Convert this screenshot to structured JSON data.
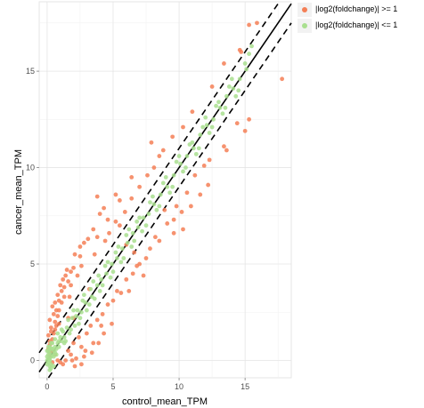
{
  "chart_data": {
    "type": "scatter",
    "xlabel": "control_mean_TPM",
    "ylabel": "cancer_mean_TPM",
    "xlim": [
      -0.6,
      18.5
    ],
    "ylim": [
      -0.9,
      18.6
    ],
    "x_ticks": [
      0,
      5,
      10,
      15
    ],
    "y_ticks": [
      0,
      5,
      10,
      15
    ],
    "grid": true,
    "legend_position": "top-right",
    "reference_lines": [
      {
        "slope": 1,
        "intercept": 0,
        "style": "solid"
      },
      {
        "slope": 1,
        "intercept": 1,
        "style": "dashed"
      },
      {
        "slope": 1,
        "intercept": -1,
        "style": "dashed"
      }
    ],
    "series": [
      {
        "name": "|log2(foldchange)| >= 1",
        "color": "#f47f56",
        "points": [
          [
            0.2,
            2.1
          ],
          [
            0.4,
            2.8
          ],
          [
            0.6,
            3.0
          ],
          [
            0.3,
            1.7
          ],
          [
            0.5,
            2.4
          ],
          [
            0.8,
            3.4
          ],
          [
            1.0,
            3.9
          ],
          [
            1.2,
            4.2
          ],
          [
            0.7,
            2.6
          ],
          [
            0.9,
            3.1
          ],
          [
            1.1,
            3.6
          ],
          [
            1.4,
            4.4
          ],
          [
            1.5,
            4.7
          ],
          [
            1.8,
            4.6
          ],
          [
            2.1,
            5.5
          ],
          [
            2.5,
            5.9
          ],
          [
            3.1,
            6.3
          ],
          [
            3.5,
            6.8
          ],
          [
            4.0,
            7.6
          ],
          [
            4.3,
            7.9
          ],
          [
            5.2,
            8.6
          ],
          [
            5.5,
            8.3
          ],
          [
            6.4,
            9.5
          ],
          [
            4.6,
            7.3
          ],
          [
            3.8,
            6.4
          ],
          [
            2.8,
            6.1
          ],
          [
            0.6,
            2.0
          ],
          [
            0.8,
            2.3
          ],
          [
            0.3,
            1.5
          ],
          [
            0.1,
            1.3
          ],
          [
            1.3,
            3.8
          ],
          [
            2.0,
            4.8
          ],
          [
            0.2,
            0.8
          ],
          [
            0.4,
            1.1
          ],
          [
            0.6,
            1.6
          ],
          [
            0.9,
            1.9
          ],
          [
            1.7,
            3.3
          ],
          [
            2.3,
            4.4
          ],
          [
            2.6,
            4.9
          ],
          [
            1.6,
            4.1
          ],
          [
            0.5,
            1.4
          ],
          [
            0.7,
            1.8
          ],
          [
            0.1,
            0.6
          ],
          [
            0.2,
            0.4
          ],
          [
            0.3,
            0.9
          ],
          [
            0.4,
            0.5
          ],
          [
            0.2,
            1.0
          ],
          [
            3.8,
            8.5
          ],
          [
            1.6,
            0.5
          ],
          [
            2.0,
            0.9
          ],
          [
            2.4,
            1.2
          ],
          [
            1.8,
            0.3
          ],
          [
            2.6,
            0.7
          ],
          [
            3.0,
            1.4
          ],
          [
            3.3,
            1.8
          ],
          [
            2.9,
            0.5
          ],
          [
            3.8,
            2.1
          ],
          [
            4.2,
            2.4
          ],
          [
            4.6,
            2.9
          ],
          [
            5.0,
            3.1
          ],
          [
            3.5,
            0.9
          ],
          [
            2.2,
            0.1
          ],
          [
            1.9,
            0.0
          ],
          [
            2.8,
            0.2
          ],
          [
            5.3,
            3.6
          ],
          [
            6.0,
            4.2
          ],
          [
            6.5,
            4.5
          ],
          [
            7.0,
            5.0
          ],
          [
            7.8,
            5.8
          ],
          [
            8.5,
            6.2
          ],
          [
            9.1,
            7.1
          ],
          [
            9.6,
            7.3
          ],
          [
            10.3,
            6.8
          ],
          [
            10.9,
            8.0
          ],
          [
            11.6,
            8.6
          ],
          [
            12.2,
            9.1
          ],
          [
            13.6,
            10.9
          ],
          [
            14.4,
            12.3
          ],
          [
            15.0,
            11.9
          ],
          [
            15.3,
            12.5
          ],
          [
            17.8,
            14.6
          ],
          [
            15.3,
            17.4
          ],
          [
            14.6,
            16.1
          ],
          [
            13.4,
            15.4
          ],
          [
            12.5,
            14.2
          ],
          [
            11.0,
            12.9
          ],
          [
            10.3,
            12.1
          ],
          [
            9.5,
            11.6
          ],
          [
            8.8,
            10.9
          ],
          [
            8.1,
            10.0
          ],
          [
            7.6,
            9.6
          ],
          [
            7.0,
            9.0
          ],
          [
            6.4,
            8.4
          ],
          [
            5.9,
            7.7
          ],
          [
            7.9,
            11.3
          ],
          [
            8.5,
            10.6
          ],
          [
            9.6,
            6.6
          ],
          [
            10.2,
            7.7
          ],
          [
            5.6,
            3.5
          ],
          [
            6.8,
            4.9
          ],
          [
            4.9,
            1.9
          ],
          [
            4.3,
            1.4
          ],
          [
            1.4,
            0.0
          ],
          [
            1.2,
            -0.2
          ],
          [
            1.0,
            -0.1
          ],
          [
            2.0,
            2.2
          ],
          [
            3.2,
            3.7
          ],
          [
            1.6,
            2.2
          ],
          [
            13.4,
            11.1
          ],
          [
            14.7,
            16.0
          ],
          [
            12.3,
            10.4
          ],
          [
            15.9,
            17.5
          ],
          [
            0.2,
            0.2
          ],
          [
            0.4,
            -0.1
          ],
          [
            0.6,
            0.3
          ],
          [
            0.8,
            0.0
          ],
          [
            1.8,
            3.9
          ],
          [
            2.5,
            5.4
          ],
          [
            0.9,
            2.6
          ],
          [
            1.1,
            3.0
          ],
          [
            1.3,
            3.3
          ],
          [
            3.6,
            5.5
          ],
          [
            4.4,
            6.2
          ],
          [
            4.7,
            6.6
          ],
          [
            5.2,
            7.2
          ],
          [
            5.5,
            7.0
          ],
          [
            6.0,
            6.0
          ],
          [
            6.6,
            5.6
          ],
          [
            8.2,
            6.4
          ],
          [
            8.9,
            7.8
          ],
          [
            9.8,
            8.0
          ],
          [
            10.6,
            8.7
          ],
          [
            11.2,
            9.6
          ],
          [
            11.9,
            10.1
          ],
          [
            2.1,
            -0.3
          ],
          [
            2.6,
            -0.2
          ],
          [
            3.4,
            0.4
          ],
          [
            3.9,
            0.9
          ],
          [
            4.1,
            1.8
          ],
          [
            6.2,
            3.6
          ],
          [
            7.3,
            4.4
          ],
          [
            7.5,
            5.3
          ]
        ]
      },
      {
        "name": "|log2(foldchange)| <= 1",
        "color": "#a9df8f",
        "points": [
          [
            0.0,
            0.0
          ],
          [
            0.1,
            0.1
          ],
          [
            0.2,
            0.1
          ],
          [
            0.3,
            0.2
          ],
          [
            0.1,
            0.3
          ],
          [
            0.2,
            0.4
          ],
          [
            0.3,
            0.6
          ],
          [
            0.4,
            0.3
          ],
          [
            0.5,
            0.5
          ],
          [
            0.6,
            0.7
          ],
          [
            0.7,
            0.6
          ],
          [
            0.8,
            0.9
          ],
          [
            0.9,
            1.0
          ],
          [
            1.0,
            1.2
          ],
          [
            1.1,
            1.0
          ],
          [
            1.2,
            1.5
          ],
          [
            1.3,
            1.2
          ],
          [
            1.5,
            1.7
          ],
          [
            1.7,
            1.4
          ],
          [
            1.9,
            2.2
          ],
          [
            2.1,
            1.8
          ],
          [
            2.3,
            2.6
          ],
          [
            2.5,
            2.2
          ],
          [
            2.7,
            3.1
          ],
          [
            3.0,
            2.6
          ],
          [
            3.3,
            3.7
          ],
          [
            3.6,
            3.2
          ],
          [
            3.9,
            4.4
          ],
          [
            4.2,
            3.9
          ],
          [
            4.6,
            5.1
          ],
          [
            5.0,
            4.6
          ],
          [
            5.4,
            5.9
          ],
          [
            5.8,
            5.3
          ],
          [
            6.2,
            6.8
          ],
          [
            6.6,
            6.2
          ],
          [
            7.0,
            7.4
          ],
          [
            7.5,
            7.0
          ],
          [
            8.0,
            8.5
          ],
          [
            8.5,
            8.0
          ],
          [
            9.0,
            9.5
          ],
          [
            9.5,
            9.0
          ],
          [
            10.0,
            10.6
          ],
          [
            10.5,
            10.0
          ],
          [
            11.0,
            11.3
          ],
          [
            11.5,
            11.0
          ],
          [
            12.0,
            12.6
          ],
          [
            12.5,
            12.1
          ],
          [
            13.0,
            13.4
          ],
          [
            13.5,
            13.1
          ],
          [
            14.0,
            14.6
          ],
          [
            14.5,
            14.0
          ],
          [
            15.0,
            15.4
          ],
          [
            15.3,
            15.9
          ],
          [
            15.5,
            16.3
          ],
          [
            0.1,
            -0.1
          ],
          [
            0.2,
            -0.3
          ],
          [
            0.3,
            -0.2
          ],
          [
            0.0,
            0.5
          ],
          [
            0.1,
            0.7
          ],
          [
            0.4,
            0.9
          ],
          [
            0.6,
            1.1
          ],
          [
            0.5,
            0.2
          ],
          [
            0.2,
            0.0
          ],
          [
            0.4,
            0.6
          ],
          [
            0.7,
            0.3
          ],
          [
            0.8,
            1.4
          ],
          [
            1.4,
            1.0
          ],
          [
            1.6,
            2.1
          ],
          [
            2.0,
            2.6
          ],
          [
            2.4,
            1.9
          ],
          [
            2.8,
            3.4
          ],
          [
            3.2,
            2.9
          ],
          [
            3.5,
            4.1
          ],
          [
            4.0,
            3.6
          ],
          [
            4.4,
            4.9
          ],
          [
            4.8,
            4.3
          ],
          [
            5.2,
            5.6
          ],
          [
            5.6,
            5.1
          ],
          [
            6.0,
            6.5
          ],
          [
            6.4,
            5.9
          ],
          [
            6.8,
            7.2
          ],
          [
            7.2,
            6.7
          ],
          [
            7.8,
            8.2
          ],
          [
            8.3,
            7.8
          ],
          [
            8.8,
            9.2
          ],
          [
            9.3,
            8.7
          ],
          [
            9.8,
            10.3
          ],
          [
            10.3,
            9.8
          ],
          [
            10.8,
            11.2
          ],
          [
            11.3,
            10.7
          ],
          [
            11.8,
            12.1
          ],
          [
            12.3,
            11.8
          ],
          [
            12.8,
            13.2
          ],
          [
            13.3,
            12.8
          ],
          [
            13.8,
            14.2
          ],
          [
            14.3,
            13.7
          ],
          [
            0.3,
            -0.4
          ],
          [
            0.5,
            -0.3
          ],
          [
            0.2,
            -0.5
          ],
          [
            0.0,
            0.2
          ],
          [
            0.1,
            0.5
          ],
          [
            0.0,
            -0.2
          ],
          [
            0.2,
            0.7
          ],
          [
            0.3,
            0.9
          ],
          [
            0.6,
            0.4
          ],
          [
            0.9,
            0.7
          ],
          [
            1.1,
            1.6
          ],
          [
            1.3,
            0.9
          ],
          [
            1.8,
            1.6
          ],
          [
            2.2,
            2.3
          ],
          [
            2.6,
            2.5
          ],
          [
            2.9,
            3.0
          ],
          [
            3.4,
            3.3
          ],
          [
            3.8,
            3.9
          ],
          [
            4.1,
            4.2
          ],
          [
            4.5,
            4.5
          ],
          [
            4.9,
            5.0
          ],
          [
            5.3,
            5.3
          ],
          [
            5.7,
            5.8
          ],
          [
            6.1,
            6.1
          ],
          [
            6.5,
            6.6
          ],
          [
            6.9,
            6.9
          ],
          [
            7.3,
            7.4
          ],
          [
            7.7,
            7.6
          ],
          [
            8.1,
            8.1
          ],
          [
            8.6,
            8.6
          ],
          [
            9.1,
            9.0
          ],
          [
            9.6,
            9.6
          ],
          [
            10.1,
            10.2
          ],
          [
            10.6,
            10.6
          ],
          [
            11.1,
            11.0
          ],
          [
            11.6,
            11.7
          ],
          [
            12.1,
            12.2
          ],
          [
            12.6,
            12.5
          ],
          [
            13.1,
            13.1
          ],
          [
            13.6,
            13.7
          ],
          [
            14.1,
            14.1
          ],
          [
            14.6,
            14.6
          ],
          [
            15.1,
            15.1
          ]
        ]
      }
    ]
  },
  "legend": [
    {
      "label": "|log2(foldchange)| >= 1",
      "color": "#f47f56"
    },
    {
      "label": "|log2(foldchange)| <= 1",
      "color": "#a9df8f"
    }
  ]
}
